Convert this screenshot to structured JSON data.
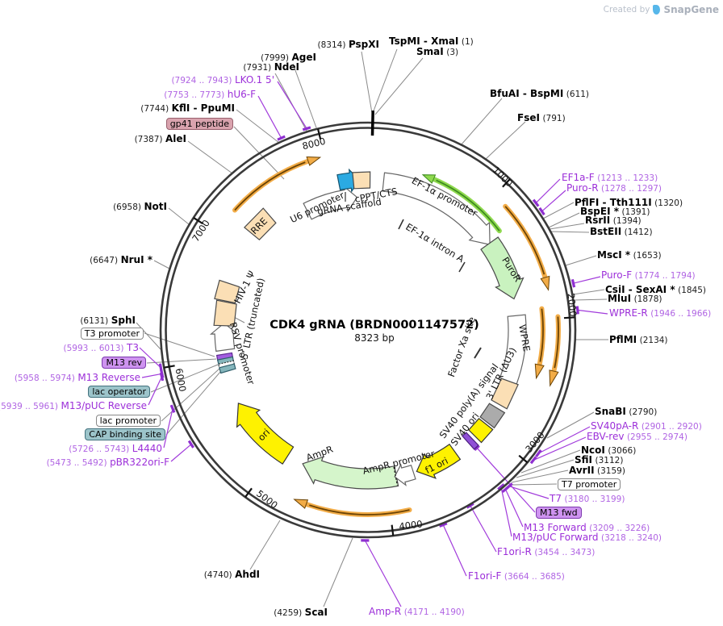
{
  "header": {
    "created_by": "Created by",
    "brand": "SnapGene"
  },
  "plasmid": {
    "title": "CDK4 gRNA (BRDN0001147572)",
    "size": "8323 bp"
  },
  "ring_ticks": {
    "t1": "1000",
    "t2": "2000",
    "t3": "3000",
    "t4": "4000",
    "t5": "5000",
    "t6": "6000",
    "t7": "7000",
    "t8": "8000"
  },
  "enzymes": {
    "pspxi": {
      "pos": "(8314)",
      "name": "PspXI"
    },
    "tspmi": {
      "name": "TspMI - XmaI",
      "pos": "(1)"
    },
    "smai": {
      "name": "SmaI",
      "pos": "(3)"
    },
    "agei": {
      "pos": "(7999)",
      "name": "AgeI"
    },
    "ndei": {
      "pos": "(7931)",
      "name": "NdeI"
    },
    "kfli": {
      "pos": "(7744)",
      "name": "KflI - PpuMI"
    },
    "alei": {
      "pos": "(7387)",
      "name": "AleI"
    },
    "noti": {
      "pos": "(6958)",
      "name": "NotI"
    },
    "nrui": {
      "pos": "(6647)",
      "name": "NruI *"
    },
    "sphi": {
      "pos": "(6131)",
      "name": "SphI"
    },
    "ahdi": {
      "pos": "(4740)",
      "name": "AhdI"
    },
    "scai": {
      "pos": "(4259)",
      "name": "ScaI"
    },
    "bfuai": {
      "name": "BfuAI - BspMI",
      "pos": "(611)"
    },
    "fsei": {
      "name": "FseI",
      "pos": "(791)"
    },
    "pflfi": {
      "name": "PflFI - Tth111I",
      "pos": "(1320)"
    },
    "bspei": {
      "name": "BspEI *",
      "pos": "(1391)"
    },
    "rsrii": {
      "name": "RsrII",
      "pos": "(1394)"
    },
    "bsteii": {
      "name": "BstEII",
      "pos": "(1412)"
    },
    "msci": {
      "name": "MscI *",
      "pos": "(1653)"
    },
    "csii": {
      "name": "CsiI - SexAI *",
      "pos": "(1845)"
    },
    "mlui": {
      "name": "MluI",
      "pos": "(1878)"
    },
    "pflmi": {
      "name": "PflMI",
      "pos": "(2134)"
    },
    "snabi": {
      "name": "SnaBI",
      "pos": "(2790)"
    },
    "ncoi": {
      "name": "NcoI",
      "pos": "(3066)"
    },
    "sfii": {
      "name": "SfiI",
      "pos": "(3112)"
    },
    "avrii": {
      "name": "AvrII",
      "pos": "(3159)"
    }
  },
  "primers": {
    "lko15": {
      "range": "(7924 .. 7943)",
      "name": "LKO.1 5'"
    },
    "hu6f": {
      "range": "(7753 .. 7773)",
      "name": "hU6-F"
    },
    "t3": {
      "range": "(5993 .. 6013)",
      "name": "T3"
    },
    "m13rev": {
      "range": "(5958 .. 5974)",
      "name": "M13 Reverse"
    },
    "m13pucrev": {
      "range": "(5939 .. 5961)",
      "name": "M13/pUC Reverse"
    },
    "l4440": {
      "range": "(5726 .. 5743)",
      "name": "L4440"
    },
    "pbr322": {
      "range": "(5473 .. 5492)",
      "name": "pBR322ori-F"
    },
    "ef1af": {
      "name": "EF1a-F",
      "range": "(1213 .. 1233)"
    },
    "puror": {
      "name": "Puro-R",
      "range": "(1278 .. 1297)"
    },
    "purof": {
      "name": "Puro-F",
      "range": "(1774 .. 1794)"
    },
    "wprer": {
      "name": "WPRE-R",
      "range": "(1946 .. 1966)"
    },
    "sv40par": {
      "name": "SV40pA-R",
      "range": "(2901 .. 2920)"
    },
    "ebvrev": {
      "name": "EBV-rev",
      "range": "(2955 .. 2974)"
    },
    "t7": {
      "name": "T7",
      "range": "(3180 .. 3199)"
    },
    "m13fwd": {
      "name": "M13 Forward",
      "range": "(3209 .. 3226)"
    },
    "m13pucfwd": {
      "name": "M13/pUC Forward",
      "range": "(3218 .. 3240)"
    },
    "f1orir": {
      "name": "F1ori-R",
      "range": "(3454 .. 3473)"
    },
    "f1orif": {
      "name": "F1ori-F",
      "range": "(3664 .. 3685)"
    },
    "ampr": {
      "name": "Amp-R",
      "range": "(4171 .. 4190)"
    }
  },
  "feature_boxes": {
    "gp41": "gp41 peptide",
    "t3prom": "T3 promoter",
    "m13rev": "M13 rev",
    "lacop": "lac operator",
    "lacprom": "lac promoter",
    "cap": "CAP binding site",
    "t7prom": "T7 promoter",
    "m13fwd": "M13 fwd"
  },
  "features": {
    "rre": "RRE",
    "u6": "U6 promoter",
    "grna": "gRNA scaffold",
    "cppt": "cPPT/CTS",
    "ef1a_prom": "EF-1α promoter",
    "ef1a_intron": "EF-1α intron A",
    "puror": "PuroR",
    "wpre": "WPRE",
    "factor_xa": "Factor Xa site",
    "ltr3": "3' LTR (ΔU3)",
    "sv40pa": "SV40 poly(A) signal",
    "sv40ori": "SV40 ori",
    "f1ori": "f1 ori",
    "ampr_prom": "AmpR promoter",
    "ampr": "AmpR",
    "ori": "ori",
    "rsv": "RSV promoter",
    "ltr5": "5' LTR (truncated)",
    "hiv": "HIV-1 Ψ"
  }
}
